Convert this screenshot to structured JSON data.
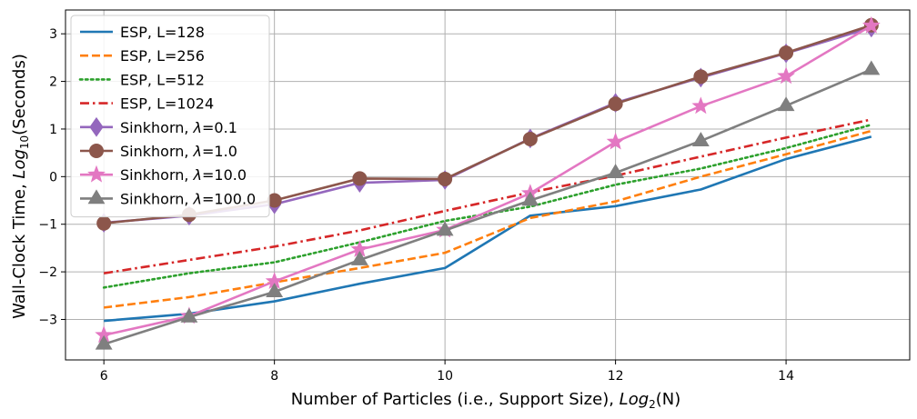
{
  "chart_data": {
    "type": "line",
    "title": "",
    "xlabel": "Number of Particles (i.e., Support Size), Log₂(N)",
    "ylabel": "Wall-Clock Time, Log₁₀(Seconds)",
    "xlim": [
      5.55,
      15.45
    ],
    "ylim": [
      -3.85,
      3.5
    ],
    "xticks": [
      6,
      8,
      10,
      12,
      14
    ],
    "yticks": [
      -3,
      -2,
      -1,
      0,
      1,
      2,
      3
    ],
    "xtick_labels": [
      "6",
      "8",
      "10",
      "12",
      "14"
    ],
    "ytick_labels": [
      "−3",
      "−2",
      "−1",
      "0",
      "1",
      "2",
      "3"
    ],
    "grid": true,
    "legend_position": "top-left",
    "x": [
      6,
      7,
      8,
      9,
      10,
      11,
      12,
      13,
      14,
      15
    ],
    "series": [
      {
        "name": "ESP, L=128",
        "label_main": "ESP, L=128",
        "label_sym": "",
        "label_end": "",
        "color": "#1f77b4",
        "dash": "solid",
        "marker": "none",
        "values": [
          -3.03,
          -2.88,
          -2.62,
          -2.25,
          -1.92,
          -0.82,
          -0.62,
          -0.27,
          0.37,
          0.84
        ]
      },
      {
        "name": "ESP, L=256",
        "label_main": "ESP, L=256",
        "label_sym": "",
        "label_end": "",
        "color": "#ff7f0e",
        "dash": "dashed",
        "marker": "none",
        "values": [
          -2.75,
          -2.53,
          -2.22,
          -1.92,
          -1.6,
          -0.87,
          -0.52,
          0.0,
          0.47,
          0.96
        ]
      },
      {
        "name": "ESP, L=512",
        "label_main": "ESP, L=512",
        "label_sym": "",
        "label_end": "",
        "color": "#2ca02c",
        "dash": "dotted",
        "marker": "none",
        "values": [
          -2.33,
          -2.03,
          -1.8,
          -1.38,
          -0.93,
          -0.63,
          -0.17,
          0.17,
          0.6,
          1.09
        ]
      },
      {
        "name": "ESP, L=1024",
        "label_main": "ESP, L=1024",
        "label_sym": "",
        "label_end": "",
        "color": "#d62728",
        "dash": "dashdot",
        "marker": "none",
        "values": [
          -2.03,
          -1.75,
          -1.47,
          -1.13,
          -0.72,
          -0.33,
          0.02,
          0.42,
          0.82,
          1.2
        ]
      },
      {
        "name": "Sinkhorn, λ=0.1",
        "label_main": "Sinkhorn, ",
        "label_sym": "λ",
        "label_end": "=0.1",
        "color": "#9467bd",
        "dash": "solid",
        "marker": "diamond",
        "values": [
          -0.97,
          -0.82,
          -0.58,
          -0.13,
          -0.07,
          0.8,
          1.55,
          2.08,
          2.59,
          3.13
        ]
      },
      {
        "name": "Sinkhorn, λ=1.0",
        "label_main": "Sinkhorn, ",
        "label_sym": "λ",
        "label_end": "=1.0",
        "color": "#8c564b",
        "dash": "solid",
        "marker": "circle",
        "values": [
          -0.98,
          -0.8,
          -0.5,
          -0.04,
          -0.05,
          0.79,
          1.53,
          2.1,
          2.6,
          3.18
        ]
      },
      {
        "name": "Sinkhorn, λ=10.0",
        "label_main": "Sinkhorn, ",
        "label_sym": "λ",
        "label_end": "=10.0",
        "color": "#e377c2",
        "dash": "solid",
        "marker": "star",
        "values": [
          -3.33,
          -2.93,
          -2.2,
          -1.53,
          -1.12,
          -0.35,
          0.73,
          1.48,
          2.11,
          3.17
        ]
      },
      {
        "name": "Sinkhorn, λ=100.0",
        "label_main": "Sinkhorn, ",
        "label_sym": "λ",
        "label_end": "=100.0",
        "color": "#7f7f7f",
        "dash": "solid",
        "marker": "triangle",
        "values": [
          -3.52,
          -2.95,
          -2.42,
          -1.75,
          -1.13,
          -0.5,
          0.08,
          0.75,
          1.49,
          2.25
        ]
      }
    ]
  }
}
